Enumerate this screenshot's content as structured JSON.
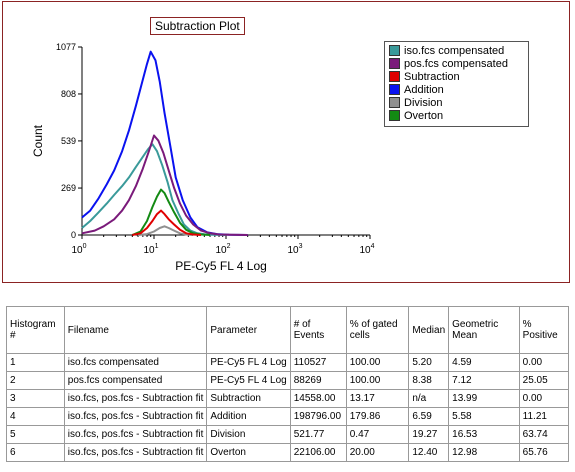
{
  "chart_data": {
    "type": "line",
    "title": "Subtraction Plot",
    "xlabel": "PE-Cy5 FL 4 Log",
    "ylabel": "Count",
    "x_scale": "log",
    "xlim": [
      1,
      10000
    ],
    "ylim": [
      0,
      1077
    ],
    "x_ticks": [
      {
        "value": 1,
        "base": "10",
        "exp": "0"
      },
      {
        "value": 10,
        "base": "10",
        "exp": "1"
      },
      {
        "value": 100,
        "base": "10",
        "exp": "2"
      },
      {
        "value": 1000,
        "base": "10",
        "exp": "3"
      },
      {
        "value": 10000,
        "base": "10",
        "exp": "4"
      }
    ],
    "y_ticks": [
      0,
      269,
      539,
      808,
      1077
    ],
    "series": [
      {
        "name": "iso.fcs compensated",
        "color": "#3a9a9a",
        "x": [
          1,
          1.3,
          1.7,
          2.2,
          2.8,
          3.6,
          4.5,
          5.6,
          6.8,
          8.2,
          9.5,
          11,
          13,
          15.5,
          18,
          22,
          26,
          32,
          40,
          50,
          65,
          100
        ],
        "y": [
          40,
          80,
          130,
          180,
          230,
          280,
          330,
          390,
          440,
          490,
          520,
          480,
          400,
          300,
          200,
          120,
          60,
          25,
          10,
          4,
          1,
          0
        ]
      },
      {
        "name": "pos.fcs compensated",
        "color": "#7a1a7a",
        "x": [
          1,
          1.5,
          2,
          2.8,
          3.6,
          4.5,
          5.6,
          7,
          8.5,
          10,
          11.5,
          13.5,
          16,
          19,
          23,
          28,
          35,
          45,
          60,
          80,
          120,
          200
        ],
        "y": [
          10,
          25,
          50,
          90,
          140,
          200,
          280,
          380,
          480,
          570,
          540,
          470,
          370,
          270,
          180,
          110,
          60,
          25,
          10,
          3,
          1,
          0
        ]
      },
      {
        "name": "Subtraction",
        "color": "#e00000",
        "x": [
          5,
          6.5,
          8,
          9.5,
          11,
          12.5,
          14,
          16,
          19,
          23,
          28,
          35,
          45
        ],
        "y": [
          0,
          10,
          40,
          80,
          120,
          140,
          120,
          90,
          60,
          30,
          10,
          3,
          0
        ]
      },
      {
        "name": "Addition",
        "color": "#0a12f0",
        "x": [
          1,
          1.3,
          1.7,
          2.2,
          2.8,
          3.6,
          4.5,
          5.6,
          6.8,
          8,
          9,
          10.5,
          12,
          14,
          17,
          20,
          25,
          32,
          40,
          55,
          75,
          110,
          200
        ],
        "y": [
          100,
          140,
          210,
          290,
          370,
          480,
          600,
          740,
          870,
          980,
          1050,
          1000,
          880,
          700,
          500,
          330,
          200,
          100,
          45,
          15,
          5,
          1,
          0
        ]
      },
      {
        "name": "Division",
        "color": "#909090",
        "x": [
          6,
          8,
          10,
          12,
          14,
          16,
          19,
          23,
          28,
          35
        ],
        "y": [
          0,
          5,
          20,
          40,
          50,
          40,
          25,
          10,
          3,
          0
        ]
      },
      {
        "name": "Overton",
        "color": "#138a13",
        "x": [
          5,
          6.5,
          8,
          9.5,
          11,
          12.5,
          14,
          16,
          19,
          23,
          28,
          35,
          45,
          60
        ],
        "y": [
          0,
          20,
          80,
          160,
          220,
          260,
          240,
          190,
          130,
          70,
          30,
          10,
          3,
          0
        ]
      }
    ]
  },
  "table": {
    "headers": [
      "Histogram #",
      "Filename",
      "Parameter",
      "# of Events",
      "% of gated cells",
      "Median",
      "Geometric Mean",
      "% Positive"
    ],
    "rows": [
      [
        "1",
        "iso.fcs compensated",
        "PE-Cy5 FL 4 Log",
        "110527",
        "100.00",
        "5.20",
        "4.59",
        "0.00"
      ],
      [
        "2",
        "pos.fcs compensated",
        "PE-Cy5 FL 4 Log",
        "88269",
        "100.00",
        "8.38",
        "7.12",
        "25.05"
      ],
      [
        "3",
        "iso.fcs, pos.fcs - Subtraction fit",
        "Subtraction",
        "14558.00",
        "13.17",
        "n/a",
        "13.99",
        "0.00"
      ],
      [
        "4",
        "iso.fcs, pos.fcs - Subtraction fit",
        "Addition",
        "198796.00",
        "179.86",
        "6.59",
        "5.58",
        "11.21"
      ],
      [
        "5",
        "iso.fcs, pos.fcs - Subtraction fit",
        "Division",
        "521.77",
        "0.47",
        "19.27",
        "16.53",
        "63.74"
      ],
      [
        "6",
        "iso.fcs, pos.fcs - Subtraction fit",
        "Overton",
        "22106.00",
        "20.00",
        "12.40",
        "12.98",
        "65.76"
      ]
    ]
  }
}
